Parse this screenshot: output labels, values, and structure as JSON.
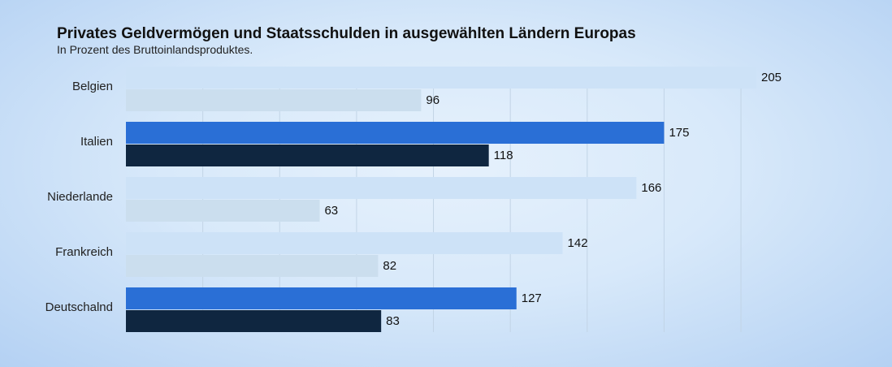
{
  "chart_data": {
    "type": "bar",
    "orientation": "horizontal",
    "title": "Privates Geldvermögen und Staatsschulden in ausgewählten Ländern Europas",
    "subtitle": "In Prozent des Bruttoinlandsproduktes.",
    "categories": [
      "Belgien",
      "Italien",
      "Niederlande",
      "Frankreich",
      "Deutschalnd"
    ],
    "series": [
      {
        "values": [
          205,
          175,
          166,
          142,
          127
        ]
      },
      {
        "values": [
          96,
          118,
          63,
          82,
          83
        ]
      }
    ],
    "highlighted_categories": [
      "Italien",
      "Deutschalnd"
    ],
    "xlim": [
      0,
      205
    ],
    "grid": true,
    "colors": {
      "series1_highlight": "#2a6fd6",
      "series2_highlight": "#0f2640",
      "series1_muted": "#cde2f7",
      "series2_muted": "#cbdeee"
    }
  }
}
